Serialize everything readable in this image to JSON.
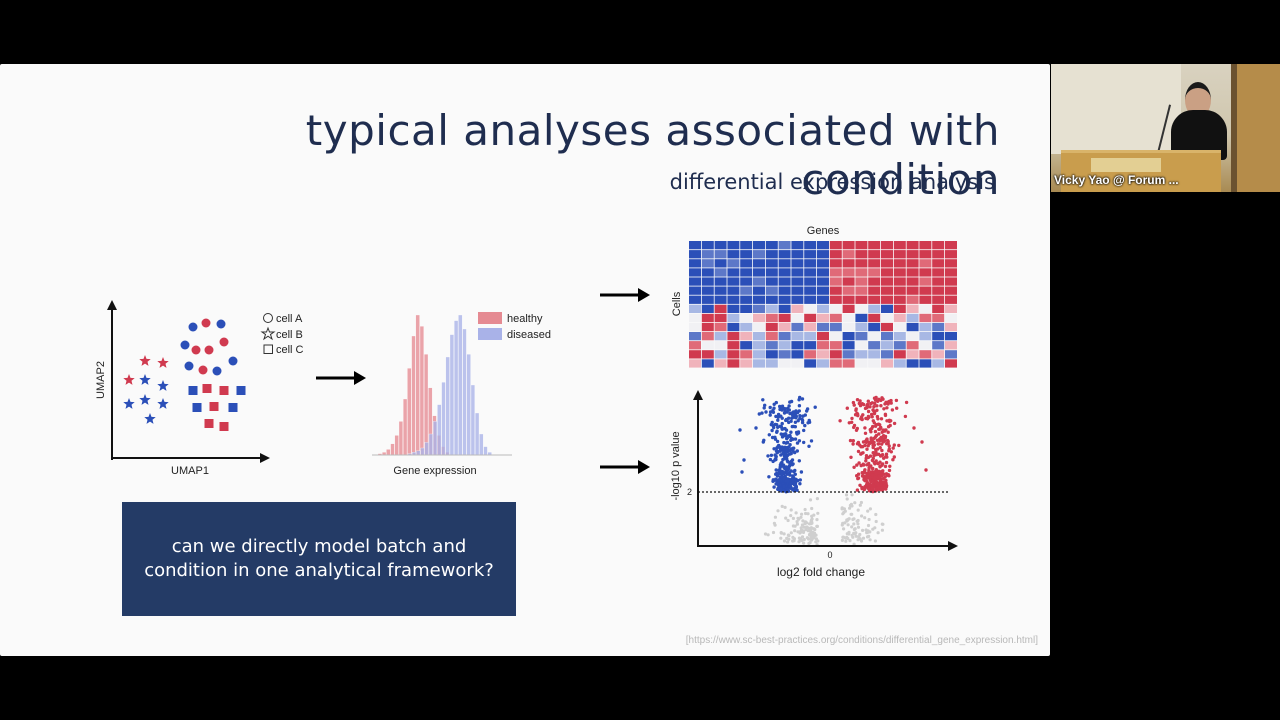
{
  "slide": {
    "title": "typical analyses associated with condition",
    "subtitle": "differential expression analysis",
    "callout": "can we directly model batch and condition in one analytical framework?",
    "citation": "[https://www.sc-best-practices.org/conditions/differential_gene_expression.html]"
  },
  "umap_plot": {
    "xlabel": "UMAP1",
    "ylabel": "UMAP2",
    "legend": [
      "cell A",
      "cell B",
      "cell C"
    ]
  },
  "histogram": {
    "xlabel": "Gene expression",
    "legend": [
      "healthy",
      "diseased"
    ]
  },
  "heatmap": {
    "top_label": "Genes",
    "side_label": "Cells"
  },
  "volcano": {
    "xlabel": "log2 fold change",
    "ylabel": "-log10 p value",
    "threshold_label": "2",
    "zero_label": "0"
  },
  "colors": {
    "red": "#d03a4f",
    "blue": "#2b4fb8",
    "navy": "#243b66"
  },
  "video": {
    "speaker": "Vicky Yao @ Forum ..."
  },
  "chart_data": [
    {
      "type": "scatter",
      "title": "",
      "xlabel": "UMAP1",
      "ylabel": "UMAP2",
      "series": [
        {
          "name": "cell A",
          "marker": "circle"
        },
        {
          "name": "cell B",
          "marker": "star"
        },
        {
          "name": "cell C",
          "marker": "square"
        }
      ]
    },
    {
      "type": "bar",
      "title": "",
      "xlabel": "Gene expression",
      "series": [
        {
          "name": "healthy",
          "values": [
            1,
            2,
            4,
            8,
            14,
            24,
            40,
            62,
            85,
            100,
            92,
            72,
            48,
            28,
            14,
            6,
            2
          ]
        },
        {
          "name": "diseased",
          "values": [
            1,
            2,
            3,
            5,
            9,
            15,
            24,
            36,
            52,
            70,
            86,
            96,
            100,
            90,
            72,
            50,
            30,
            15,
            6,
            2
          ]
        }
      ]
    },
    {
      "type": "heatmap",
      "title": "",
      "xlabel": "Genes",
      "ylabel": "Cells"
    },
    {
      "type": "scatter",
      "title": "",
      "xlabel": "log2 fold change",
      "ylabel": "-log10 p value",
      "threshold": 2
    }
  ]
}
